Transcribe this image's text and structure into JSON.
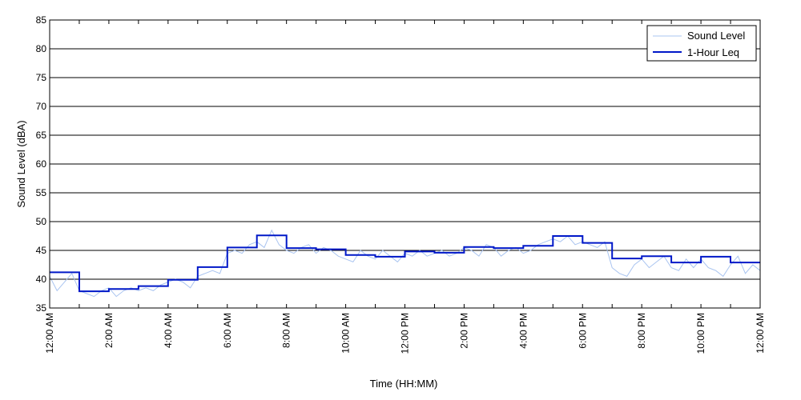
{
  "chart_data": {
    "type": "line",
    "title": "",
    "xlabel": "Time (HH:MM)",
    "ylabel": "Sound Level (dBA)",
    "ylim": [
      35,
      85
    ],
    "yticks": [
      35,
      40,
      45,
      50,
      55,
      60,
      65,
      70,
      75,
      80,
      85
    ],
    "xlim_hours": [
      0,
      24
    ],
    "xticks": [
      {
        "hour": 0,
        "label": "12:00 AM"
      },
      {
        "hour": 2,
        "label": "2:00 AM"
      },
      {
        "hour": 4,
        "label": "4:00 AM"
      },
      {
        "hour": 6,
        "label": "6:00 AM"
      },
      {
        "hour": 8,
        "label": "8:00 AM"
      },
      {
        "hour": 10,
        "label": "10:00 AM"
      },
      {
        "hour": 12,
        "label": "12:00 PM"
      },
      {
        "hour": 14,
        "label": "2:00 PM"
      },
      {
        "hour": 16,
        "label": "4:00 PM"
      },
      {
        "hour": 18,
        "label": "6:00 PM"
      },
      {
        "hour": 20,
        "label": "8:00 PM"
      },
      {
        "hour": 22,
        "label": "10:00 PM"
      },
      {
        "hour": 24,
        "label": "12:00 AM"
      }
    ],
    "grid": "horizontal",
    "legend_position": "top-right",
    "series": [
      {
        "name": "Sound Level",
        "color": "#a9c4f0",
        "style": "thin-line",
        "x_hours": [
          0,
          0.25,
          0.5,
          0.75,
          1,
          1.25,
          1.5,
          1.75,
          2,
          2.25,
          2.5,
          2.75,
          3,
          3.25,
          3.5,
          3.75,
          4,
          4.25,
          4.5,
          4.75,
          5,
          5.25,
          5.5,
          5.75,
          6,
          6.25,
          6.5,
          6.75,
          7,
          7.25,
          7.5,
          7.75,
          8,
          8.25,
          8.5,
          8.75,
          9,
          9.25,
          9.5,
          9.75,
          10,
          10.25,
          10.5,
          10.75,
          11,
          11.25,
          11.5,
          11.75,
          12,
          12.25,
          12.5,
          12.75,
          13,
          13.25,
          13.5,
          13.75,
          14,
          14.25,
          14.5,
          14.75,
          15,
          15.25,
          15.5,
          15.75,
          16,
          16.25,
          16.5,
          16.75,
          17,
          17.25,
          17.5,
          17.75,
          18,
          18.25,
          18.5,
          18.75,
          19,
          19.25,
          19.5,
          19.75,
          20,
          20.25,
          20.5,
          20.75,
          21,
          21.25,
          21.5,
          21.75,
          22,
          22.25,
          22.5,
          22.75,
          23,
          23.25,
          23.5,
          23.75,
          24
        ],
        "values": [
          40.5,
          38.0,
          39.5,
          41.0,
          38.0,
          37.5,
          37.0,
          38.0,
          38.5,
          37.0,
          38.0,
          38.5,
          38.0,
          38.5,
          38.0,
          39.0,
          39.5,
          40.0,
          39.5,
          38.5,
          40.5,
          41.0,
          41.5,
          41.0,
          44.5,
          45.0,
          44.5,
          46.0,
          46.5,
          45.5,
          48.5,
          46.0,
          45.0,
          44.5,
          45.5,
          46.0,
          44.5,
          45.5,
          45.0,
          44.0,
          43.5,
          43.0,
          45.0,
          44.0,
          43.5,
          45.0,
          44.0,
          43.0,
          44.5,
          44.0,
          45.0,
          44.0,
          44.5,
          45.0,
          44.0,
          44.5,
          45.5,
          45.0,
          44.0,
          46.0,
          45.5,
          44.0,
          45.0,
          45.5,
          44.5,
          45.0,
          46.0,
          46.5,
          47.0,
          46.5,
          47.5,
          46.0,
          46.5,
          46.0,
          45.5,
          46.5,
          42.0,
          41.0,
          40.5,
          42.5,
          43.5,
          42.0,
          43.0,
          44.0,
          42.0,
          41.5,
          43.5,
          42.0,
          43.5,
          42.0,
          41.5,
          40.5,
          42.5,
          44.0,
          41.0,
          42.5,
          41.5
        ]
      },
      {
        "name": "1-Hour Leq",
        "color": "#0018c8",
        "style": "step",
        "hourly_values": [
          41.2,
          37.9,
          38.3,
          38.8,
          39.9,
          42.1,
          45.5,
          47.6,
          45.4,
          45.2,
          44.2,
          43.9,
          44.8,
          44.6,
          45.6,
          45.4,
          45.8,
          47.5,
          46.3,
          43.6,
          44.0,
          42.9,
          43.9,
          42.9
        ]
      }
    ]
  }
}
